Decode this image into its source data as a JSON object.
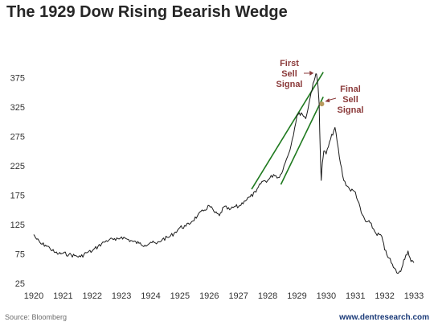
{
  "header": {
    "title": "The 1929 Dow Rising Bearish Wedge"
  },
  "footer": {
    "source": "Source: Bloomberg",
    "site": "www.dentresearch.com"
  },
  "colors": {
    "line": "#1a1a1a",
    "wedge": "#1f7a1f",
    "annotation": "#8b3a3a",
    "signal_dot": "#b89a5e"
  },
  "chart_data": {
    "type": "line",
    "title": "The 1929 Dow Rising Bearish Wedge",
    "xlabel": "",
    "ylabel": "",
    "xlim": [
      1920,
      1933
    ],
    "ylim": [
      25,
      400
    ],
    "x_ticks": [
      1920,
      1921,
      1922,
      1923,
      1924,
      1925,
      1926,
      1927,
      1928,
      1929,
      1930,
      1931,
      1932,
      1933
    ],
    "x_tick_labels": [
      "1920",
      "1921",
      "1922",
      "1923",
      "1924",
      "1925",
      "1926",
      "1927",
      "1928",
      "1929",
      "1930",
      "1931",
      "1932",
      "1933"
    ],
    "y_ticks": [
      25,
      75,
      125,
      175,
      225,
      275,
      325,
      375
    ],
    "y_tick_labels": [
      "25",
      "75",
      "125",
      "175",
      "225",
      "275",
      "325",
      "375"
    ],
    "grid": false,
    "series": [
      {
        "x": [
          1920.0,
          1920.1,
          1920.25,
          1920.4,
          1920.55,
          1920.7,
          1920.85,
          1921.0,
          1921.2,
          1921.4,
          1921.6,
          1921.8,
          1922.0,
          1922.2,
          1922.4,
          1922.6,
          1922.8,
          1923.0,
          1923.2,
          1923.4,
          1923.6,
          1923.8,
          1924.0,
          1924.2,
          1924.4,
          1924.6,
          1924.8,
          1925.0,
          1925.2,
          1925.4,
          1925.6,
          1925.8,
          1926.0,
          1926.2,
          1926.35,
          1926.5,
          1926.7,
          1926.9,
          1927.0,
          1927.2,
          1927.4,
          1927.6,
          1927.8,
          1928.0,
          1928.2,
          1928.4,
          1928.6,
          1928.8,
          1929.0,
          1929.15,
          1929.3,
          1929.45,
          1929.55,
          1929.62,
          1929.67,
          1929.72,
          1929.76,
          1929.8,
          1929.83,
          1929.87,
          1929.92,
          1930.0,
          1930.15,
          1930.3,
          1930.45,
          1930.6,
          1930.8,
          1931.0,
          1931.2,
          1931.35,
          1931.5,
          1931.7,
          1931.9,
          1932.0,
          1932.15,
          1932.3,
          1932.45,
          1932.55,
          1932.65,
          1932.8,
          1932.9,
          1933.0
        ],
        "y": [
          108,
          100,
          92,
          90,
          85,
          78,
          75,
          76,
          74,
          72,
          70,
          77,
          80,
          88,
          95,
          100,
          98,
          104,
          100,
          96,
          93,
          90,
          95,
          92,
          100,
          103,
          110,
          120,
          122,
          130,
          140,
          148,
          157,
          145,
          140,
          155,
          150,
          156,
          155,
          165,
          172,
          180,
          198,
          200,
          210,
          205,
          230,
          260,
          310,
          315,
          305,
          340,
          365,
          375,
          381,
          360,
          330,
          245,
          200,
          230,
          250,
          245,
          270,
          290,
          240,
          200,
          185,
          180,
          145,
          130,
          128,
          110,
          105,
          82,
          68,
          52,
          42,
          45,
          65,
          80,
          62,
          60
        ]
      }
    ],
    "wedge_lines": [
      {
        "x": [
          1927.45,
          1929.9
        ],
        "y": [
          185,
          384
        ]
      },
      {
        "x": [
          1928.45,
          1929.9
        ],
        "y": [
          193,
          342
        ]
      }
    ],
    "annotations": [
      {
        "text": [
          "First",
          "Sell",
          "Signal"
        ],
        "x": 1929.6,
        "y": 381
      },
      {
        "text": [
          "Final",
          "Sell",
          "Signal"
        ],
        "x": 1929.85,
        "y": 330
      }
    ]
  }
}
